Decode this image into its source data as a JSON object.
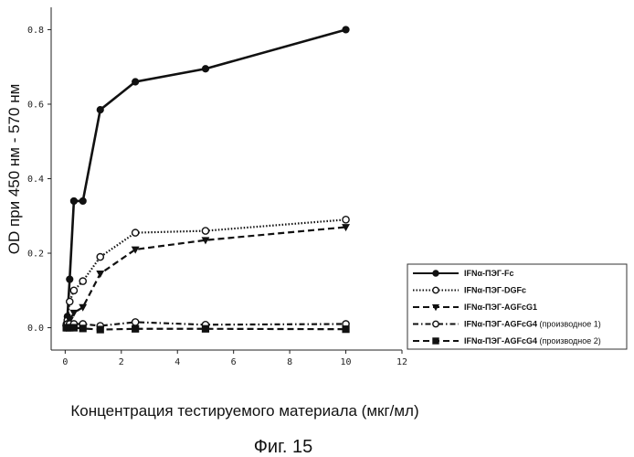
{
  "chart_data": {
    "type": "line",
    "xlabel": "Концентрация тестируемого материала (мкг/мл)",
    "ylabel": "OD при 450 нм - 570 нм",
    "xlim": [
      -0.5,
      12
    ],
    "ylim": [
      -0.06,
      0.86
    ],
    "x_ticks": [
      0,
      2,
      4,
      6,
      8,
      10,
      12
    ],
    "x_tick_labels": [
      "0",
      "2",
      "4",
      "6",
      "8",
      "10",
      "12"
    ],
    "y_ticks": [
      0.0,
      0.2,
      0.4,
      0.6,
      0.8
    ],
    "y_tick_labels": [
      "0.0",
      "0.2",
      "0.4",
      "0.6",
      "0.8"
    ],
    "legend_position": "right",
    "series": [
      {
        "name": "IFNα-ПЭГ-Fc",
        "marker": "filled-circle",
        "line": "solid",
        "x": [
          0.04,
          0.08,
          0.16,
          0.31,
          0.63,
          1.25,
          2.5,
          5,
          10
        ],
        "y": [
          0.01,
          0.03,
          0.13,
          0.34,
          0.34,
          0.585,
          0.66,
          0.695,
          0.8
        ]
      },
      {
        "name": "IFNα-ПЭГ-DGFc",
        "marker": "open-circle",
        "line": "dotted",
        "x": [
          0.04,
          0.08,
          0.16,
          0.31,
          0.63,
          1.25,
          2.5,
          5,
          10
        ],
        "y": [
          0.005,
          0.02,
          0.07,
          0.1,
          0.125,
          0.19,
          0.255,
          0.26,
          0.29
        ]
      },
      {
        "name": "IFNα-ПЭГ-AGFcG1",
        "marker": "filled-triangle",
        "line": "dashed",
        "x": [
          0.04,
          0.08,
          0.16,
          0.31,
          0.63,
          1.25,
          2.5,
          5,
          10
        ],
        "y": [
          0.0,
          0.01,
          0.02,
          0.04,
          0.055,
          0.145,
          0.21,
          0.235,
          0.27
        ]
      },
      {
        "name": "IFNα-ПЭГ-AGFcG4",
        "name_suffix": "(производное 1)",
        "marker": "open-circle",
        "line": "dash-dot",
        "x": [
          0.04,
          0.08,
          0.16,
          0.31,
          0.63,
          1.25,
          2.5,
          5,
          10
        ],
        "y": [
          0.005,
          0.01,
          0.01,
          0.01,
          0.01,
          0.005,
          0.015,
          0.008,
          0.01
        ]
      },
      {
        "name": "IFNα-ПЭГ-AGFcG4",
        "name_suffix": "(производное 2)",
        "marker": "filled-square",
        "line": "dashed",
        "x": [
          0.04,
          0.08,
          0.16,
          0.31,
          0.63,
          1.25,
          2.5,
          5,
          10
        ],
        "y": [
          0.0,
          0.0,
          0.0,
          0.0,
          -0.002,
          -0.005,
          -0.003,
          -0.003,
          -0.004
        ]
      }
    ]
  },
  "caption": "Фиг. 15"
}
